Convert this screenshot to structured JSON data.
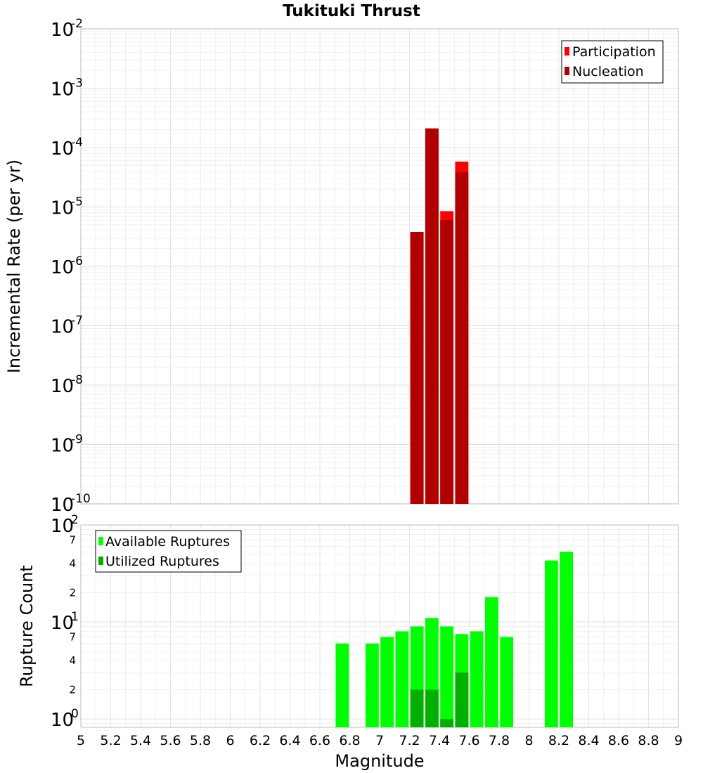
{
  "chart_data": [
    {
      "type": "bar",
      "title": "Tukituki Thrust",
      "xlabel": "",
      "ylabel": "Incremental Rate (per yr)",
      "yscale": "log",
      "xlim": [
        5,
        9
      ],
      "ylim": [
        1e-10,
        0.01
      ],
      "y_tick_bases": [
        "10",
        "10",
        "10",
        "10",
        "10",
        "10",
        "10",
        "10",
        "10"
      ],
      "y_tick_exps": [
        "-10",
        "-9",
        "-8",
        "-7",
        "-6",
        "-5",
        "-4",
        "-3",
        "-2"
      ],
      "legend": {
        "position": "top-right",
        "entries": [
          "Participation",
          "Nucleation"
        ]
      },
      "colors": {
        "Participation": "#ff0000",
        "Nucleation": "#b00000"
      },
      "bin_width": 0.1,
      "series": [
        {
          "name": "Participation",
          "x": [
            7.25,
            7.35,
            7.45,
            7.55
          ],
          "values": [
            3.8e-06,
            0.00021,
            8.5e-06,
            5.8e-05
          ]
        },
        {
          "name": "Nucleation",
          "x": [
            7.25,
            7.35,
            7.45,
            7.55
          ],
          "values": [
            3.8e-06,
            0.00021,
            6e-06,
            3.8e-05
          ]
        }
      ]
    },
    {
      "type": "bar",
      "title": "",
      "xlabel": "Magnitude",
      "ylabel": "Rupture Count",
      "yscale": "log",
      "xlim": [
        5,
        9
      ],
      "ylim": [
        0.82,
        100
      ],
      "y_major_bases": [
        "10",
        "10",
        "10"
      ],
      "y_major_exps": [
        "0",
        "1",
        "2"
      ],
      "y_minor_labels": [
        "2",
        "4",
        "7",
        "2",
        "4",
        "7"
      ],
      "x_tick_labels": [
        "5",
        "5.2",
        "5.4",
        "5.6",
        "5.8",
        "6",
        "6.2",
        "6.4",
        "6.6",
        "6.8",
        "7",
        "7.2",
        "7.4",
        "7.6",
        "7.8",
        "8",
        "8.2",
        "8.4",
        "8.6",
        "8.8",
        "9"
      ],
      "legend": {
        "position": "top-left",
        "entries": [
          "Available Ruptures",
          "Utilized Ruptures"
        ]
      },
      "colors": {
        "Available Ruptures": "#00ff00",
        "Utilized Ruptures": "#00b000"
      },
      "bin_width": 0.1,
      "series": [
        {
          "name": "Available Ruptures",
          "x": [
            6.75,
            6.95,
            7.05,
            7.15,
            7.25,
            7.35,
            7.45,
            7.55,
            7.65,
            7.75,
            7.85,
            8.15,
            8.25
          ],
          "values": [
            6,
            6,
            7,
            8,
            9,
            11,
            9,
            7.5,
            8,
            18,
            7,
            43,
            53
          ]
        },
        {
          "name": "Utilized Ruptures",
          "x": [
            7.25,
            7.35,
            7.45,
            7.55
          ],
          "values": [
            2,
            2,
            1,
            3
          ]
        }
      ]
    }
  ]
}
